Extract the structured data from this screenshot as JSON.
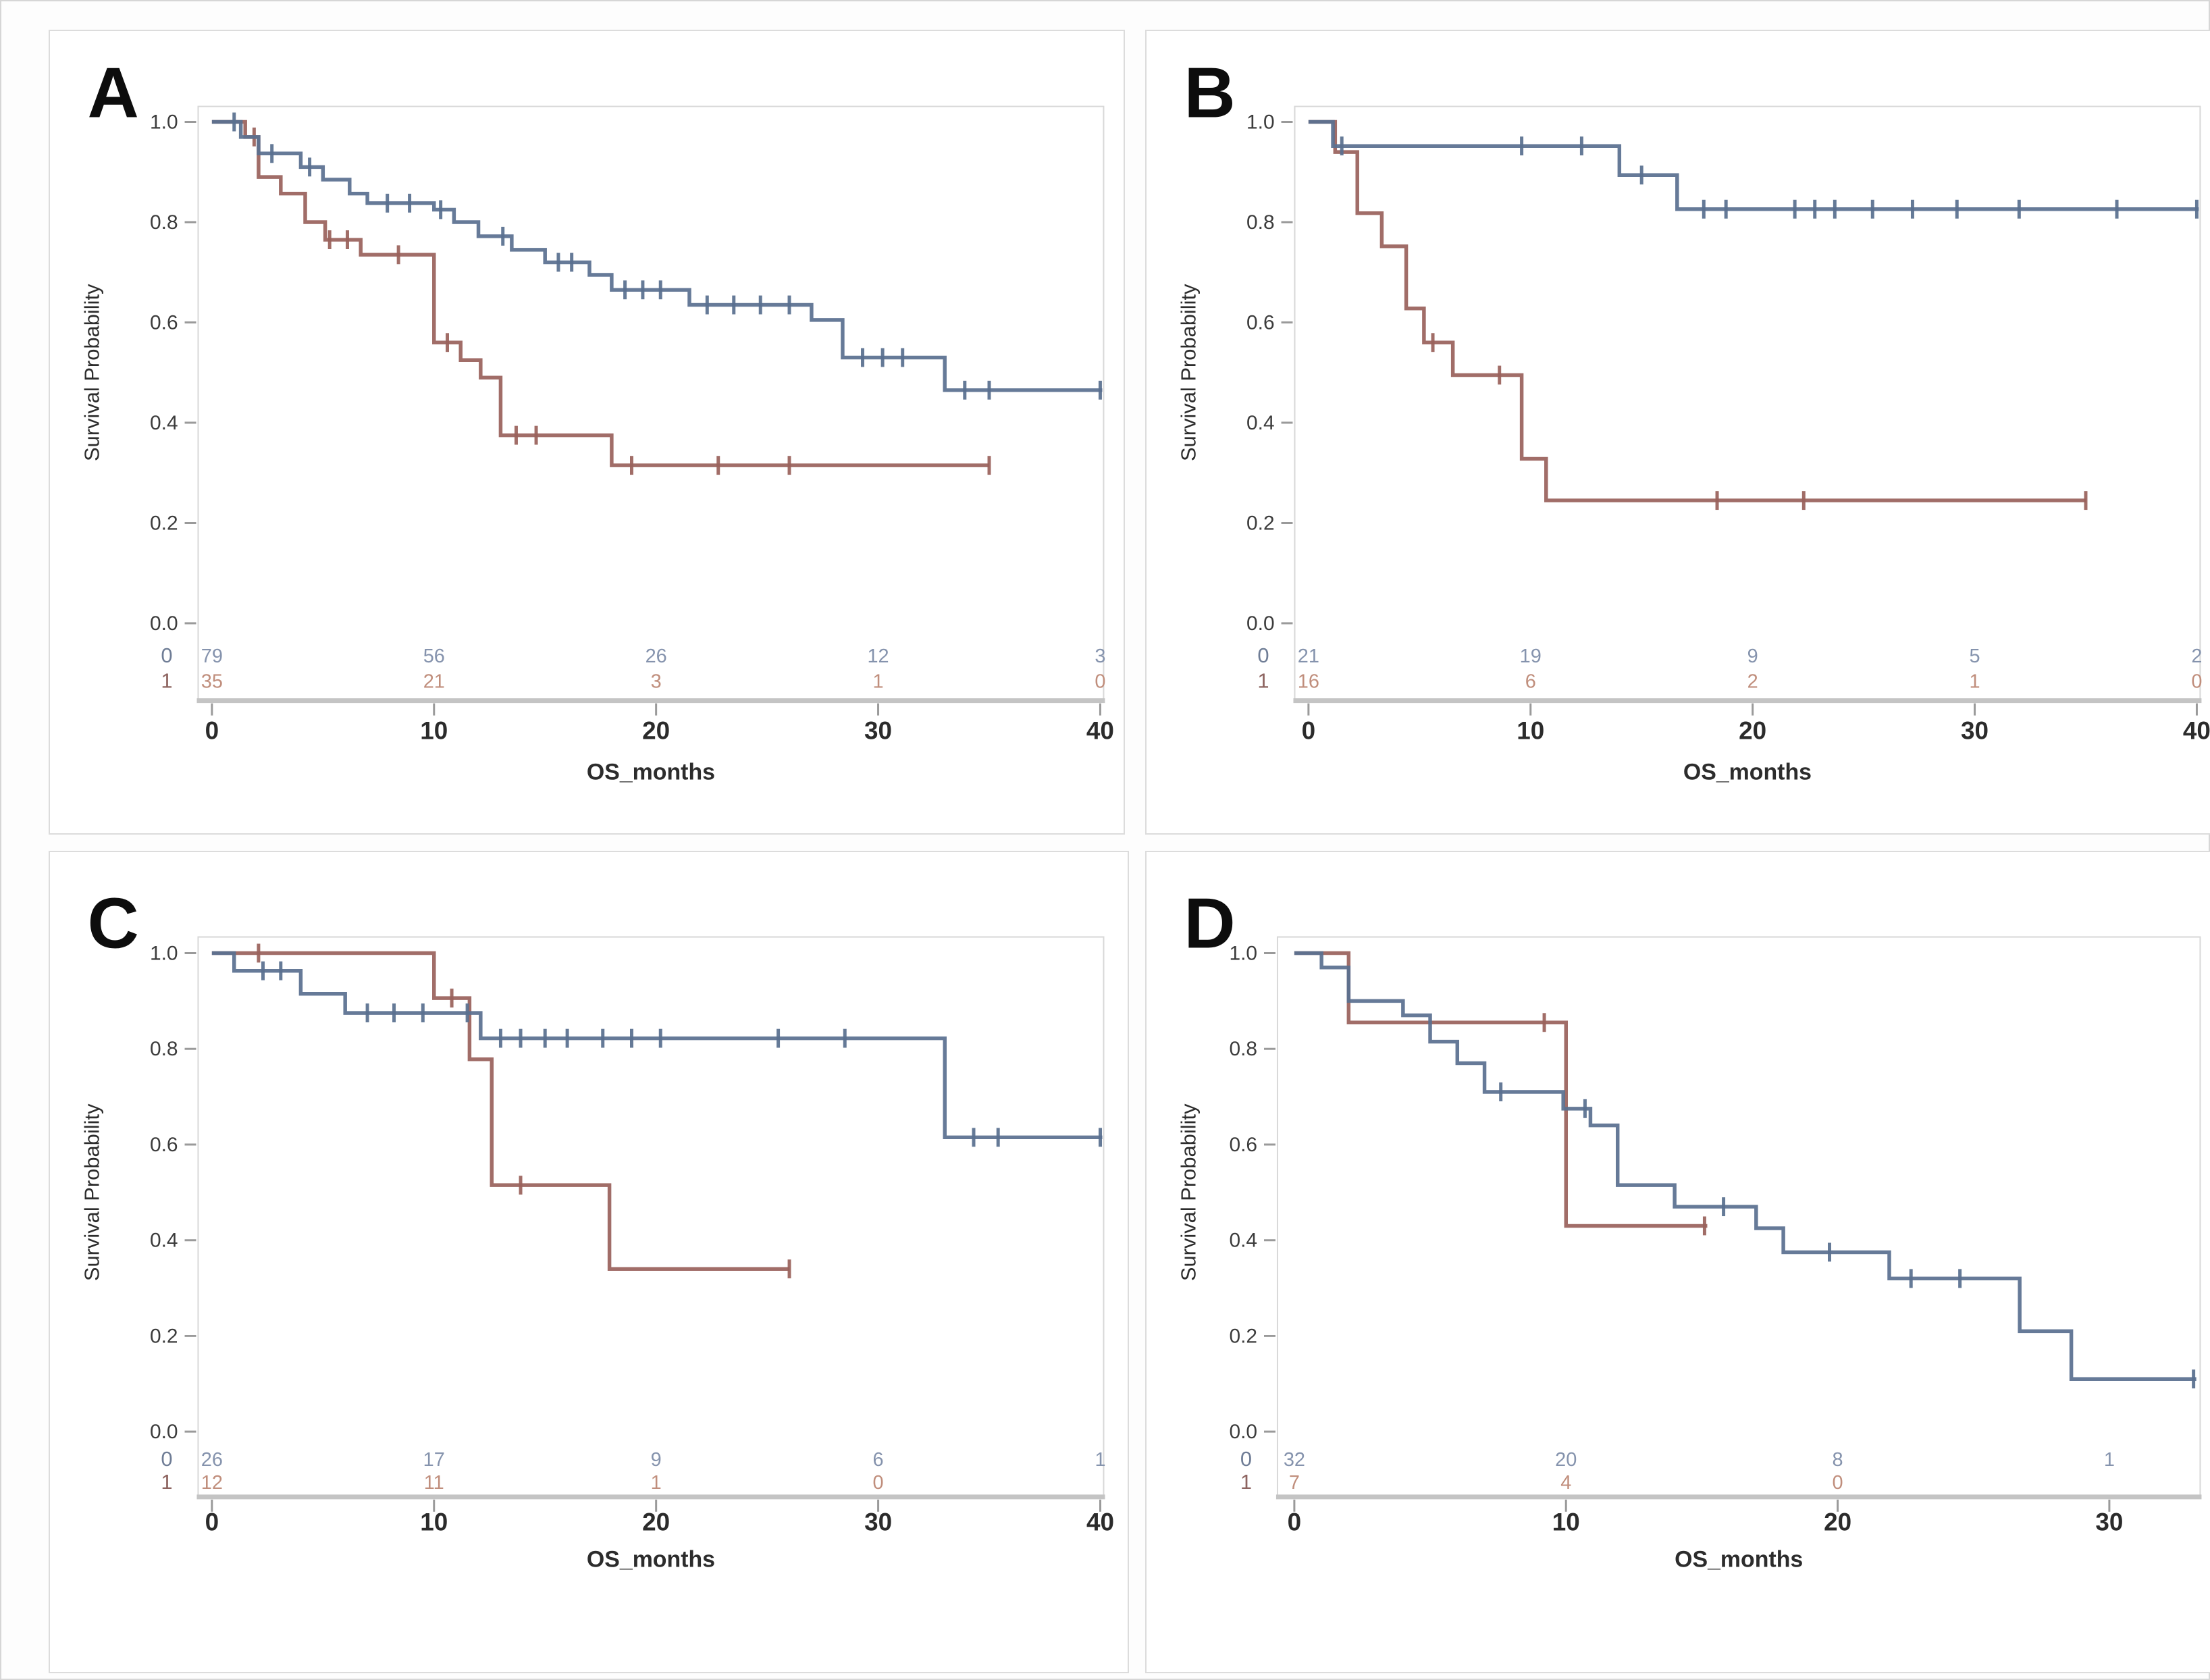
{
  "figure": {
    "type": "kaplan-meier-grid",
    "panel_letters": [
      "A",
      "B",
      "C",
      "D"
    ]
  },
  "style": {
    "series_blue": "#5a7090",
    "series_red": "#9a625c",
    "atrisk_blue_text": "#8593ad",
    "atrisk_red_text": "#c08e7c",
    "row_label_blue": "#6f7d96",
    "row_label_red": "#8d6460",
    "wall_border": "#d8d8d8",
    "axis_thick_line": "#c4c4c4",
    "tick_mark": "#9a9a9a",
    "tick_label": "#2b2b2b",
    "axis_title": "#2c2c2c",
    "panel_letter": "#0d0d0d"
  },
  "chart_data": [
    {
      "type": "line",
      "title": "A",
      "xlabel": "OS_months",
      "ylabel": "Survival Probability",
      "xticks": [
        0,
        10,
        20,
        30,
        40
      ],
      "yticks": [
        1.0,
        0.8,
        0.6,
        0.4,
        0.2,
        0.0
      ],
      "ylim": [
        0.0,
        1.0
      ],
      "xlim": [
        0,
        41
      ],
      "grid": false,
      "legend": "none",
      "series": [
        {
          "name": "0",
          "color": "#5a7090",
          "steps": [
            [
              0,
              1.0
            ],
            [
              1.3,
              0.97
            ],
            [
              2.1,
              0.937
            ],
            [
              4,
              0.91
            ],
            [
              5,
              0.885
            ],
            [
              6.2,
              0.857
            ],
            [
              7,
              0.838
            ],
            [
              10,
              0.825
            ],
            [
              10.9,
              0.8
            ],
            [
              12,
              0.772
            ],
            [
              13.5,
              0.745
            ],
            [
              15,
              0.72
            ],
            [
              17,
              0.695
            ],
            [
              18,
              0.665
            ],
            [
              21.5,
              0.635
            ],
            [
              27,
              0.605
            ],
            [
              28.4,
              0.53
            ],
            [
              33,
              0.465
            ]
          ],
          "end": 40.1,
          "censors": [
            [
              1.0,
              1.0
            ],
            [
              2.7,
              0.937
            ],
            [
              4.4,
              0.91
            ],
            [
              7.9,
              0.838
            ],
            [
              8.9,
              0.838
            ],
            [
              10.3,
              0.825
            ],
            [
              13.1,
              0.772
            ],
            [
              15.6,
              0.72
            ],
            [
              16.2,
              0.72
            ],
            [
              18.6,
              0.665
            ],
            [
              19.4,
              0.665
            ],
            [
              20.2,
              0.665
            ],
            [
              22.3,
              0.635
            ],
            [
              23.5,
              0.635
            ],
            [
              24.7,
              0.635
            ],
            [
              26,
              0.635
            ],
            [
              29.3,
              0.53
            ],
            [
              30.2,
              0.53
            ],
            [
              31.1,
              0.53
            ],
            [
              33.9,
              0.465
            ],
            [
              35,
              0.465
            ],
            [
              40,
              0.465
            ]
          ]
        },
        {
          "name": "1",
          "color": "#9a625c",
          "steps": [
            [
              0,
              1.0
            ],
            [
              1.5,
              0.97
            ],
            [
              2.1,
              0.89
            ],
            [
              3.1,
              0.857
            ],
            [
              4.2,
              0.8
            ],
            [
              5.1,
              0.765
            ],
            [
              6.7,
              0.735
            ],
            [
              10,
              0.56
            ],
            [
              11.2,
              0.525
            ],
            [
              12.1,
              0.49
            ],
            [
              13,
              0.375
            ],
            [
              18,
              0.315
            ]
          ],
          "end": 35,
          "censors": [
            [
              1.9,
              0.97
            ],
            [
              5.3,
              0.765
            ],
            [
              6.1,
              0.765
            ],
            [
              8.4,
              0.735
            ],
            [
              10.6,
              0.56
            ],
            [
              13.7,
              0.375
            ],
            [
              14.6,
              0.375
            ],
            [
              18.9,
              0.315
            ],
            [
              22.8,
              0.315
            ],
            [
              26,
              0.315
            ],
            [
              35,
              0.315
            ]
          ]
        }
      ],
      "at_risk": {
        "times": [
          0,
          10,
          20,
          30,
          40
        ],
        "rows": [
          {
            "label": "0",
            "values": [
              "79",
              "56",
              "26",
              "12",
              "3"
            ]
          },
          {
            "label": "1",
            "values": [
              "35",
              "21",
              "3",
              "1",
              "0"
            ]
          }
        ]
      }
    },
    {
      "type": "line",
      "title": "B",
      "xlabel": "OS_months",
      "ylabel": "Survival Probability",
      "xticks": [
        0,
        10,
        20,
        30,
        40
      ],
      "yticks": [
        1.0,
        0.8,
        0.6,
        0.4,
        0.2,
        0.0
      ],
      "ylim": [
        0.0,
        1.0
      ],
      "xlim": [
        0,
        41
      ],
      "grid": false,
      "legend": "none",
      "series": [
        {
          "name": "0",
          "color": "#5a7090",
          "steps": [
            [
              0,
              1.0
            ],
            [
              1.1,
              0.952
            ],
            [
              14,
              0.894
            ],
            [
              16.6,
              0.826
            ]
          ],
          "end": 40.1,
          "censors": [
            [
              1.5,
              0.952
            ],
            [
              9.6,
              0.952
            ],
            [
              12.3,
              0.952
            ],
            [
              15,
              0.894
            ],
            [
              17.8,
              0.826
            ],
            [
              18.8,
              0.826
            ],
            [
              21.9,
              0.826
            ],
            [
              22.8,
              0.826
            ],
            [
              23.7,
              0.826
            ],
            [
              25.4,
              0.826
            ],
            [
              27.2,
              0.826
            ],
            [
              29.2,
              0.826
            ],
            [
              32,
              0.826
            ],
            [
              36.4,
              0.826
            ],
            [
              40,
              0.826
            ]
          ]
        },
        {
          "name": "1",
          "color": "#9a625c",
          "steps": [
            [
              0,
              1.0
            ],
            [
              1.2,
              0.94
            ],
            [
              2.2,
              0.818
            ],
            [
              3.3,
              0.752
            ],
            [
              4.4,
              0.628
            ],
            [
              5.2,
              0.56
            ],
            [
              6.5,
              0.495
            ],
            [
              9.6,
              0.328
            ],
            [
              10.7,
              0.245
            ]
          ],
          "end": 35,
          "censors": [
            [
              5.6,
              0.56
            ],
            [
              8.6,
              0.495
            ],
            [
              18.4,
              0.245
            ],
            [
              22.3,
              0.245
            ],
            [
              35,
              0.245
            ]
          ]
        }
      ],
      "at_risk": {
        "times": [
          0,
          10,
          20,
          30,
          40
        ],
        "rows": [
          {
            "label": "0",
            "values": [
              "21",
              "19",
              "9",
              "5",
              "2"
            ]
          },
          {
            "label": "1",
            "values": [
              "16",
              "6",
              "2",
              "1",
              "0"
            ]
          }
        ]
      }
    },
    {
      "type": "line",
      "title": "C",
      "xlabel": "OS_months",
      "ylabel": "Survival Probability",
      "xticks": [
        0,
        10,
        20,
        30,
        40
      ],
      "yticks": [
        1.0,
        0.8,
        0.6,
        0.4,
        0.2,
        0.0
      ],
      "ylim": [
        0.0,
        1.0
      ],
      "xlim": [
        0,
        41
      ],
      "grid": false,
      "legend": "none",
      "series": [
        {
          "name": "0",
          "color": "#5a7090",
          "steps": [
            [
              0,
              1.0
            ],
            [
              1,
              0.963
            ],
            [
              4,
              0.915
            ],
            [
              6,
              0.875
            ],
            [
              12.1,
              0.822
            ],
            [
              33,
              0.615
            ]
          ],
          "end": 40.1,
          "censors": [
            [
              2.3,
              0.963
            ],
            [
              3.1,
              0.963
            ],
            [
              7,
              0.875
            ],
            [
              8.2,
              0.875
            ],
            [
              9.5,
              0.875
            ],
            [
              11.5,
              0.875
            ],
            [
              13,
              0.822
            ],
            [
              13.9,
              0.822
            ],
            [
              15,
              0.822
            ],
            [
              16,
              0.822
            ],
            [
              17.6,
              0.822
            ],
            [
              18.9,
              0.822
            ],
            [
              20.2,
              0.822
            ],
            [
              25.5,
              0.822
            ],
            [
              28.5,
              0.822
            ],
            [
              34.3,
              0.615
            ],
            [
              35.4,
              0.615
            ],
            [
              40,
              0.615
            ]
          ]
        },
        {
          "name": "1",
          "color": "#9a625c",
          "steps": [
            [
              0,
              1.0
            ],
            [
              10,
              0.906
            ],
            [
              11.6,
              0.778
            ],
            [
              12.6,
              0.515
            ],
            [
              17.9,
              0.34
            ]
          ],
          "end": 26,
          "censors": [
            [
              2.1,
              1.0
            ],
            [
              10.8,
              0.906
            ],
            [
              13.9,
              0.515
            ],
            [
              26,
              0.34
            ]
          ]
        }
      ],
      "at_risk": {
        "times": [
          0,
          10,
          20,
          30,
          40
        ],
        "rows": [
          {
            "label": "0",
            "values": [
              "26",
              "17",
              "9",
              "6",
              "1"
            ]
          },
          {
            "label": "1",
            "values": [
              "12",
              "11",
              "1",
              "0"
            ]
          }
        ]
      }
    },
    {
      "type": "line",
      "title": "D",
      "xlabel": "OS_months",
      "ylabel": "Survival Probability",
      "xticks": [
        0,
        10,
        20,
        30
      ],
      "yticks": [
        1.0,
        0.8,
        0.6,
        0.4,
        0.2,
        0.0
      ],
      "ylim": [
        0.0,
        1.0
      ],
      "xlim": [
        0,
        33.5
      ],
      "grid": false,
      "legend": "none",
      "series": [
        {
          "name": "0",
          "color": "#5a7090",
          "steps": [
            [
              0,
              1.0
            ],
            [
              1,
              0.97
            ],
            [
              2,
              0.9
            ],
            [
              4,
              0.87
            ],
            [
              5,
              0.815
            ],
            [
              6,
              0.77
            ],
            [
              7,
              0.71
            ],
            [
              9.9,
              0.675
            ],
            [
              10.9,
              0.64
            ],
            [
              11.9,
              0.515
            ],
            [
              14,
              0.47
            ],
            [
              17,
              0.425
            ],
            [
              18,
              0.375
            ],
            [
              21.9,
              0.32
            ],
            [
              26.7,
              0.21
            ],
            [
              28.6,
              0.11
            ]
          ],
          "end": 33.2,
          "censors": [
            [
              7.6,
              0.71
            ],
            [
              10.7,
              0.675
            ],
            [
              15.8,
              0.47
            ],
            [
              19.7,
              0.375
            ],
            [
              22.7,
              0.32
            ],
            [
              24.5,
              0.32
            ],
            [
              33.1,
              0.11
            ]
          ]
        },
        {
          "name": "1",
          "color": "#9a625c",
          "steps": [
            [
              0,
              1.0
            ],
            [
              2,
              0.855
            ],
            [
              10,
              0.43
            ]
          ],
          "end": 15.2,
          "censors": [
            [
              9.2,
              0.855
            ],
            [
              15.1,
              0.43
            ]
          ]
        }
      ],
      "at_risk": {
        "times": [
          0,
          10,
          20,
          30
        ],
        "rows": [
          {
            "label": "0",
            "values": [
              "32",
              "20",
              "8",
              "1"
            ]
          },
          {
            "label": "1",
            "values": [
              "7",
              "4",
              "0"
            ]
          }
        ]
      }
    }
  ]
}
